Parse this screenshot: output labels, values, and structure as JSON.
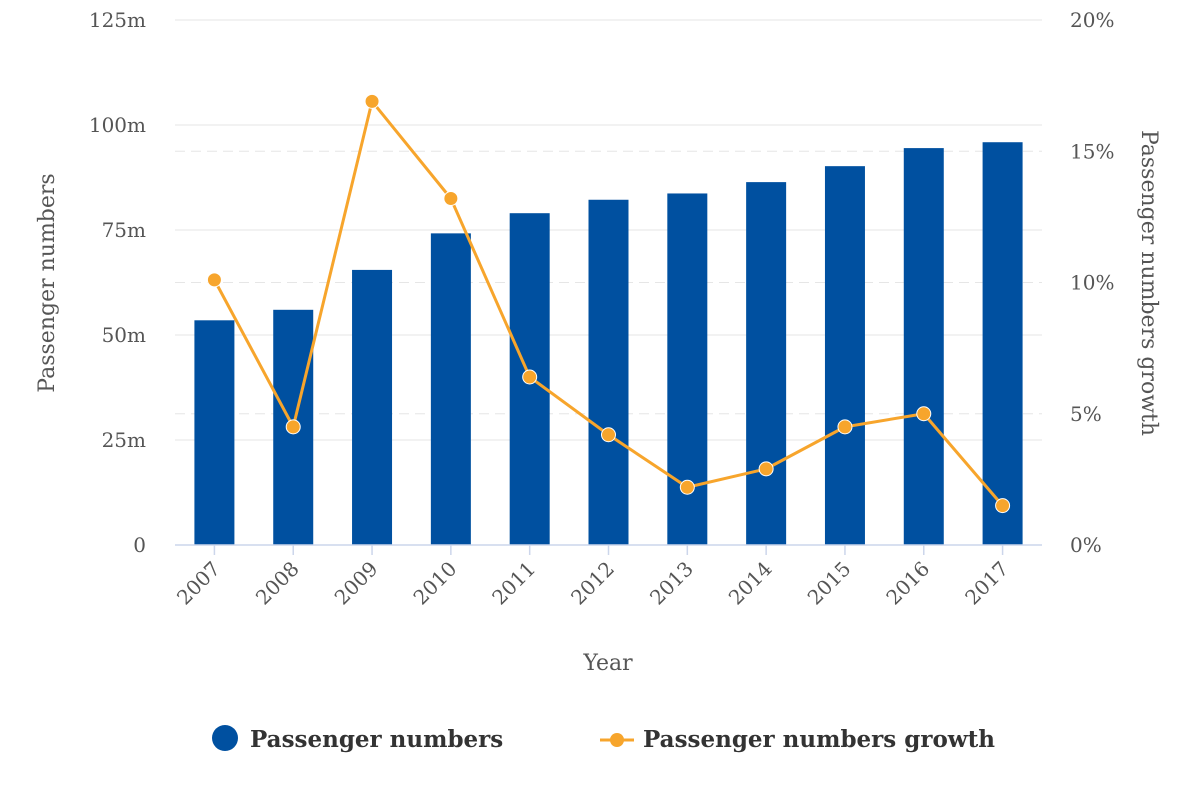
{
  "chart_data": {
    "type": "bar",
    "xlabel": "Year",
    "ylabel_left": "Passenger numbers",
    "ylabel_right": "Passenger numbers growth",
    "categories": [
      "2007",
      "2008",
      "2009",
      "2010",
      "2011",
      "2012",
      "2013",
      "2014",
      "2015",
      "2016",
      "2017"
    ],
    "series": [
      {
        "name": "Passenger numbers",
        "type": "bar",
        "axis": "left",
        "unit": "m",
        "color": "#0050a0",
        "values": [
          53.5,
          56.0,
          65.5,
          74.2,
          79.0,
          82.2,
          83.7,
          86.4,
          90.2,
          94.5,
          95.9
        ]
      },
      {
        "name": "Passenger numbers growth",
        "type": "line",
        "axis": "right",
        "unit": "%",
        "color": "#f7a52c",
        "values": [
          10.1,
          4.5,
          16.9,
          13.2,
          6.4,
          4.2,
          2.2,
          2.9,
          4.5,
          5.0,
          1.5
        ]
      }
    ],
    "y_left": {
      "ylim": [
        0,
        125
      ],
      "ticks": [
        0,
        25,
        50,
        75,
        100,
        125
      ],
      "tick_labels": [
        "0",
        "25m",
        "50m",
        "75m",
        "100m",
        "125m"
      ]
    },
    "y_right": {
      "ylim": [
        0,
        20
      ],
      "ticks": [
        0,
        5,
        10,
        15,
        20
      ],
      "tick_labels": [
        "0%",
        "5%",
        "10%",
        "15%",
        "20%"
      ]
    },
    "grid": true,
    "legend": "bottom-center"
  }
}
